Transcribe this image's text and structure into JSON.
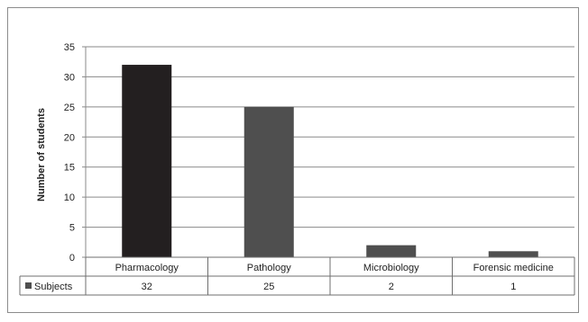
{
  "chart_data": {
    "type": "bar",
    "categories": [
      "Pharmacology",
      "Pathology",
      "Microbiology",
      "Forensic medicine"
    ],
    "series": [
      {
        "name": "Subjects",
        "values": [
          32,
          25,
          2,
          1
        ],
        "colors": [
          "#231f20",
          "#4f4f4f",
          "#4f4f4f",
          "#4f4f4f"
        ]
      }
    ],
    "ylabel": "Number of students",
    "ylim": [
      0,
      35
    ],
    "yticks": [
      0,
      5,
      10,
      15,
      20,
      25,
      30,
      35
    ],
    "grid": true,
    "legend": "data-table"
  }
}
